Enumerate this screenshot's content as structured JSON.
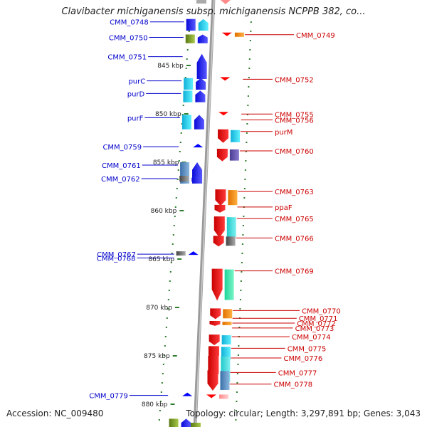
{
  "title": "Clavibacter michiganensis subsp. michiganensis NCPPB 382, co...",
  "accession": "Accession: NC_009480",
  "topology": "Topology: circular; Length: 3,297,891 bp; Genes: 3,043",
  "colors": {
    "forward_label": "#0000cc",
    "reverse_label": "#cc0000",
    "backbone": "#9a9a9a",
    "tick": "#2e7d2e"
  },
  "ruler": {
    "unit": "kbp",
    "ticks": [
      845,
      850,
      855,
      860,
      865,
      870,
      875,
      880
    ]
  },
  "forward_genes": [
    {
      "name": "CMM_0748",
      "start": 840.2
    },
    {
      "name": "CMM_0750",
      "start": 841.8
    },
    {
      "name": "CMM_0751",
      "start": 843.8
    },
    {
      "name": "purC",
      "start": 846.3
    },
    {
      "name": "purD",
      "start": 847.6
    },
    {
      "name": "purF",
      "start": 850.1
    },
    {
      "name": "CMM_0759",
      "start": 853.1
    },
    {
      "name": "CMM_0761",
      "start": 855.0
    },
    {
      "name": "CMM_0762",
      "start": 856.4
    },
    {
      "name": "CMM_0767",
      "start": 864.2
    },
    {
      "name": "CMM_0768",
      "start": 864.6
    },
    {
      "name": "CMM_0779",
      "start": 878.8
    }
  ],
  "reverse_genes": [
    {
      "name": "CMM_0749",
      "start": 841.6
    },
    {
      "name": "CMM_0752",
      "start": 846.2
    },
    {
      "name": "CMM_0755",
      "start": 849.8
    },
    {
      "name": "CMM_0756",
      "start": 850.4
    },
    {
      "name": "purM",
      "start": 851.6
    },
    {
      "name": "CMM_0760",
      "start": 853.6
    },
    {
      "name": "CMM_0763",
      "start": 857.8
    },
    {
      "name": "ppaF",
      "start": 859.4
    },
    {
      "name": "CMM_0765",
      "start": 860.6
    },
    {
      "name": "CMM_0766",
      "start": 862.6
    },
    {
      "name": "CMM_0769",
      "start": 866.0
    },
    {
      "name": "CMM_0770",
      "start": 870.1
    },
    {
      "name": "CMM_0771",
      "start": 870.9
    },
    {
      "name": "CMM_0772",
      "start": 871.4
    },
    {
      "name": "CMM_0773",
      "start": 871.9
    },
    {
      "name": "CMM_0774",
      "start": 872.8
    },
    {
      "name": "CMM_0775",
      "start": 874.0
    },
    {
      "name": "CMM_0776",
      "start": 875.0
    },
    {
      "name": "CMM_0777",
      "start": 876.5
    },
    {
      "name": "CMM_0778",
      "start": 877.7
    }
  ]
}
